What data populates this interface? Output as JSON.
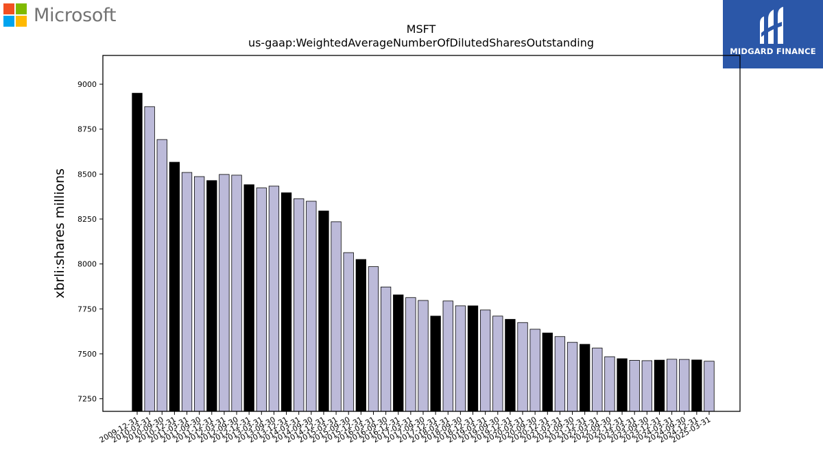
{
  "header": {
    "brand_text": "Microsoft",
    "brand_colors": [
      "#f25022",
      "#7fba00",
      "#00a4ef",
      "#ffb900"
    ],
    "badge_text": "MIDGARD FINANCE",
    "badge_color": "#2b57a8"
  },
  "chart_data": {
    "type": "bar",
    "title": "MSFT",
    "subtitle": "us-gaap:WeightedAverageNumberOfDilutedSharesOutstanding",
    "xlabel": "",
    "ylabel": "xbrli:shares millions",
    "ylim": [
      7180,
      9160
    ],
    "yticks": [
      7250,
      7500,
      7750,
      8000,
      8250,
      8500,
      8750,
      9000
    ],
    "grid": false,
    "colors": {
      "fiscal_year_end": "#000000",
      "quarter": "#bcbad9"
    },
    "categories": [
      "2009-12-31",
      "2010-03-31",
      "2010-09-30",
      "2010-12-31",
      "2011-03-31",
      "2011-09-30",
      "2011-12-31",
      "2012-03-31",
      "2012-09-30",
      "2012-12-31",
      "2013-03-31",
      "2013-09-30",
      "2013-12-31",
      "2014-03-31",
      "2014-09-30",
      "2014-12-31",
      "2015-03-31",
      "2015-09-30",
      "2015-12-31",
      "2016-03-31",
      "2016-09-30",
      "2016-12-31",
      "2017-03-31",
      "2017-09-30",
      "2017-12-31",
      "2018-03-31",
      "2018-09-30",
      "2018-12-31",
      "2019-03-31",
      "2019-09-30",
      "2019-12-31",
      "2020-03-31",
      "2020-09-30",
      "2020-12-31",
      "2021-03-31",
      "2021-09-30",
      "2021-12-31",
      "2022-03-31",
      "2022-09-30",
      "2022-12-31",
      "2023-03-31",
      "2023-09-30",
      "2023-12-31",
      "2024-03-31",
      "2024-09-30",
      "2024-12-31",
      "2025-03-31"
    ],
    "values": [
      8950,
      8875,
      8692,
      8566,
      8509,
      8486,
      8464,
      8498,
      8494,
      8441,
      8423,
      8433,
      8396,
      8363,
      8349,
      8295,
      8235,
      8063,
      8025,
      7985,
      7872,
      7828,
      7813,
      7797,
      7710,
      7794,
      7767,
      7767,
      7744,
      7710,
      7692,
      7674,
      7637,
      7616,
      7596,
      7564,
      7553,
      7532,
      7484,
      7473,
      7464,
      7462,
      7465,
      7470,
      7469,
      7466,
      7459
    ],
    "highlight": [
      true,
      false,
      false,
      true,
      false,
      false,
      true,
      false,
      false,
      true,
      false,
      false,
      true,
      false,
      false,
      true,
      false,
      false,
      true,
      false,
      false,
      true,
      false,
      false,
      true,
      false,
      false,
      true,
      false,
      false,
      true,
      false,
      false,
      true,
      false,
      false,
      true,
      false,
      false,
      true,
      false,
      false,
      true,
      false,
      false,
      true,
      false
    ]
  }
}
